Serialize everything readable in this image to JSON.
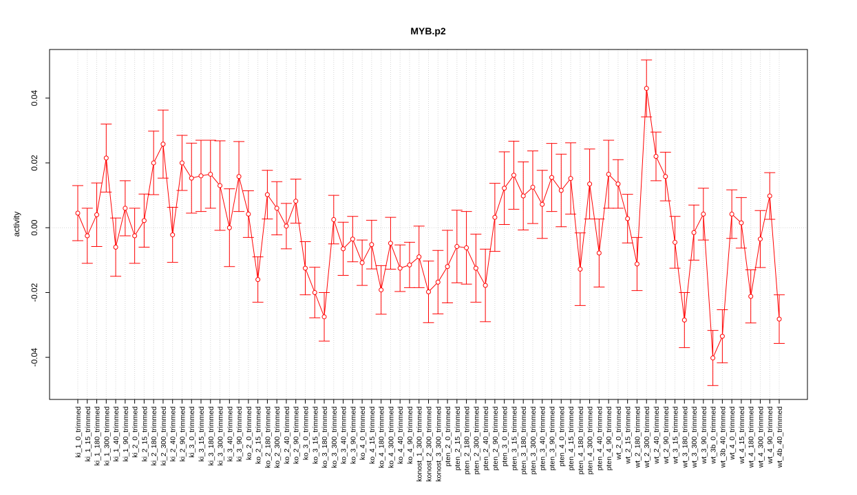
{
  "chart_data": {
    "type": "line",
    "title": "MYB.p2",
    "xlabel": "",
    "ylabel": "activity",
    "ylim": [
      -0.053,
      0.055
    ],
    "yticks": [
      -0.04,
      -0.02,
      0.0,
      0.02,
      0.04
    ],
    "ytick_labels": [
      "-0.04",
      "-0.02",
      "0.00",
      "0.02",
      "0.04"
    ],
    "grid": true,
    "zero_line": true,
    "error_bars": true,
    "colors": {
      "series": "#ff0000",
      "grid": "#d3d3d3",
      "axis": "#000000"
    },
    "categories": [
      "ki_1_0_trimmed",
      "ki_1_15_trimmed",
      "ki_1_180_trimmed",
      "ki_1_300_trimmed",
      "ki_1_40_trimmed",
      "ki_1_90_trimmed",
      "ki_2_0_trimmed",
      "ki_2_15_trimmed",
      "ki_2_180_trimmed",
      "ki_2_300_trimmed",
      "ki_2_40_trimmed",
      "ki_2_90_trimmed",
      "ki_3_0_trimmed",
      "ki_3_15_trimmed",
      "ki_3_180_trimmed",
      "ki_3_300_trimmed",
      "ki_3_40_trimmed",
      "ki_3_90_trimmed",
      "ko_2_0_trimmed",
      "ko_2_15_trimmed",
      "ko_2_180_trimmed",
      "ko_2_300_trimmed",
      "ko_2_40_trimmed",
      "ko_2_90_trimmed",
      "ko_3_0_trimmed",
      "ko_3_15_trimmed",
      "ko_3_180_trimmed",
      "ko_3_300_trimmed",
      "ko_3_40_trimmed",
      "ko_3_90_trimmed",
      "ko_4_0_trimmed",
      "ko_4_15_trimmed",
      "ko_4_180_trimmed",
      "ko_4_300_trimmed",
      "ko_4_40_trimmed",
      "ko_4_90_trimmed",
      "konost_1_300_trimmed",
      "konost_2_300_trimmed",
      "konost_3_300_trimmed",
      "pten_2_0_trimmed",
      "pten_2_15_trimmed",
      "pten_2_180_trimmed",
      "pten_2_300_trimmed",
      "pten_2_40_trimmed",
      "pten_2_90_trimmed",
      "pten_3_0_trimmed",
      "pten_3_15_trimmed",
      "pten_3_180_trimmed",
      "pten_3_300_trimmed",
      "pten_3_40_trimmed",
      "pten_3_90_trimmed",
      "pten_4_0_trimmed",
      "pten_4_15_trimmed",
      "pten_4_180_trimmed",
      "pten_4_300_trimmed",
      "pten_4_40_trimmed",
      "pten_4_90_trimmed",
      "wt_2_0_trimmed",
      "wt_2_15_trimmed",
      "wt_2_180_trimmed",
      "wt_2_300_trimmed",
      "wt_2_40_trimmed",
      "wt_2_90_trimmed",
      "wt_3_15_trimmed",
      "wt_3_180_trimmed",
      "wt_3_300_trimmed",
      "wt_3_90_trimmed",
      "wt_3b_0_trimmed",
      "wt_3b_40_trimmed",
      "wt_4_0_trimmed",
      "wt_4_15_trimmed",
      "wt_4_180_trimmed",
      "wt_4_300_trimmed",
      "wt_4_90_trimmed",
      "wt_4b_40_trimmed"
    ],
    "series": [
      {
        "values": [
          0.0045,
          -0.0025,
          0.004,
          0.0215,
          -0.006,
          0.006,
          -0.0025,
          0.0022,
          0.02,
          0.0258,
          -0.0022,
          0.02,
          0.0153,
          0.016,
          0.0165,
          0.013,
          0.0,
          0.0158,
          0.0042,
          -0.016,
          0.0102,
          0.006,
          0.0005,
          0.0082,
          -0.0125,
          -0.02,
          -0.0275,
          0.0025,
          -0.0065,
          -0.0035,
          -0.0108,
          -0.0052,
          -0.0192,
          -0.0048,
          -0.0125,
          -0.0115,
          -0.009,
          -0.0198,
          -0.0168,
          -0.012,
          -0.0058,
          -0.0062,
          -0.0125,
          -0.0178,
          0.0032,
          0.0122,
          0.0162,
          0.0098,
          0.0125,
          0.0072,
          0.0155,
          0.0115,
          0.0152,
          -0.0128,
          0.0135,
          -0.0078,
          0.0165,
          0.0135,
          0.0028,
          -0.0112,
          0.043,
          0.022,
          0.0158,
          -0.0045,
          -0.0285,
          -0.0015,
          0.0042,
          -0.0402,
          -0.0335,
          0.0042,
          0.0015,
          -0.0212,
          -0.0035,
          0.0098,
          -0.0282
        ],
        "errors": [
          0.0085,
          0.0085,
          0.0098,
          0.0105,
          0.009,
          0.0085,
          0.0085,
          0.0082,
          0.0098,
          0.0105,
          0.0085,
          0.0085,
          0.0108,
          0.011,
          0.0105,
          0.0138,
          0.012,
          0.0108,
          0.0072,
          0.007,
          0.0075,
          0.0082,
          0.007,
          0.0068,
          0.0082,
          0.0078,
          0.0075,
          0.0075,
          0.0082,
          0.007,
          0.007,
          0.0075,
          0.0075,
          0.008,
          0.0072,
          0.007,
          0.0095,
          0.0095,
          0.0098,
          0.0112,
          0.0112,
          0.0112,
          0.0105,
          0.0112,
          0.0105,
          0.0112,
          0.0105,
          0.0105,
          0.0112,
          0.0105,
          0.0105,
          0.0112,
          0.011,
          0.0112,
          0.0108,
          0.0105,
          0.0105,
          0.0075,
          0.0075,
          0.0082,
          0.0088,
          0.0075,
          0.0075,
          0.008,
          0.0085,
          0.0085,
          0.008,
          0.0085,
          0.0082,
          0.0075,
          0.0078,
          0.0082,
          0.0088,
          0.0072,
          0.0075
        ]
      }
    ]
  }
}
